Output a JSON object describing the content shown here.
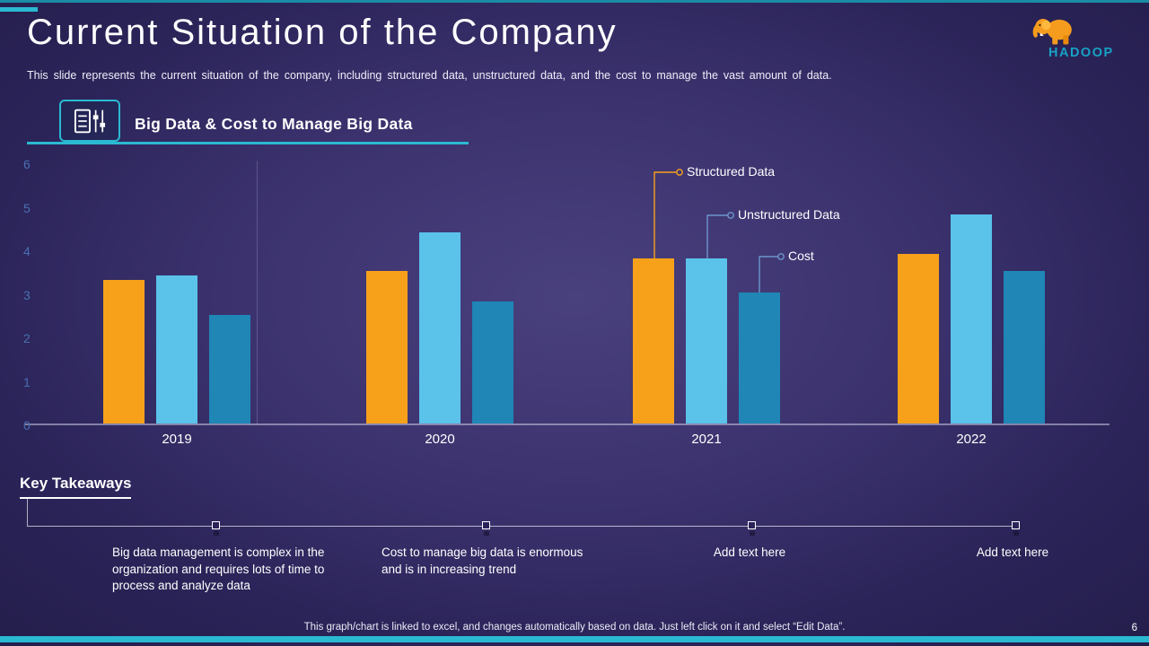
{
  "slide": {
    "title": "Current Situation of the Company",
    "subtitle": "This slide represents the current situation of the company, including structured data, unstructured data, and the cost to manage the vast amount of data.",
    "page_number": "6",
    "footer_note": "This graph/chart is linked to excel, and changes automatically based on data. Just left click on it and select “Edit Data”."
  },
  "logo": {
    "text": "HADOOP"
  },
  "section": {
    "title": "Big Data & Cost to Manage Big Data"
  },
  "chart_data": {
    "type": "bar",
    "title": "Big Data & Cost to Manage Big Data",
    "categories": [
      "2019",
      "2020",
      "2021",
      "2022"
    ],
    "series": [
      {
        "name": "Structured Data",
        "color": "#F7A11B",
        "values": [
          3.3,
          3.5,
          3.8,
          3.9
        ]
      },
      {
        "name": "Unstructured Data",
        "color": "#5BC2EA",
        "values": [
          3.4,
          4.4,
          3.8,
          4.8
        ]
      },
      {
        "name": "Cost",
        "color": "#1F86B6",
        "values": [
          2.5,
          2.8,
          3.0,
          3.5
        ]
      }
    ],
    "ylim": [
      0,
      6
    ],
    "yticks": [
      0,
      1,
      2,
      3,
      4,
      5,
      6
    ],
    "grid": false,
    "legend_position": "callouts pointing to 2021 bars"
  },
  "takeaways": {
    "title": "Key Takeaways",
    "items": [
      "Big data management is complex in the organization and requires lots of time to process and analyze data",
      "Cost to manage big data is enormous and is in increasing trend",
      "Add text here",
      "Add text here"
    ]
  },
  "colors": {
    "accent_teal": "#2BB9D2",
    "background_outer": "#241E4C",
    "background_inner": "#49407E",
    "structured": "#F7A11B",
    "unstructured": "#5BC2EA",
    "cost": "#1F86B6",
    "axis_label_blue": "#4A6FB0",
    "callout_line_colors": [
      "#F7A11B",
      "#6C95CC",
      "#6C95CC"
    ]
  }
}
